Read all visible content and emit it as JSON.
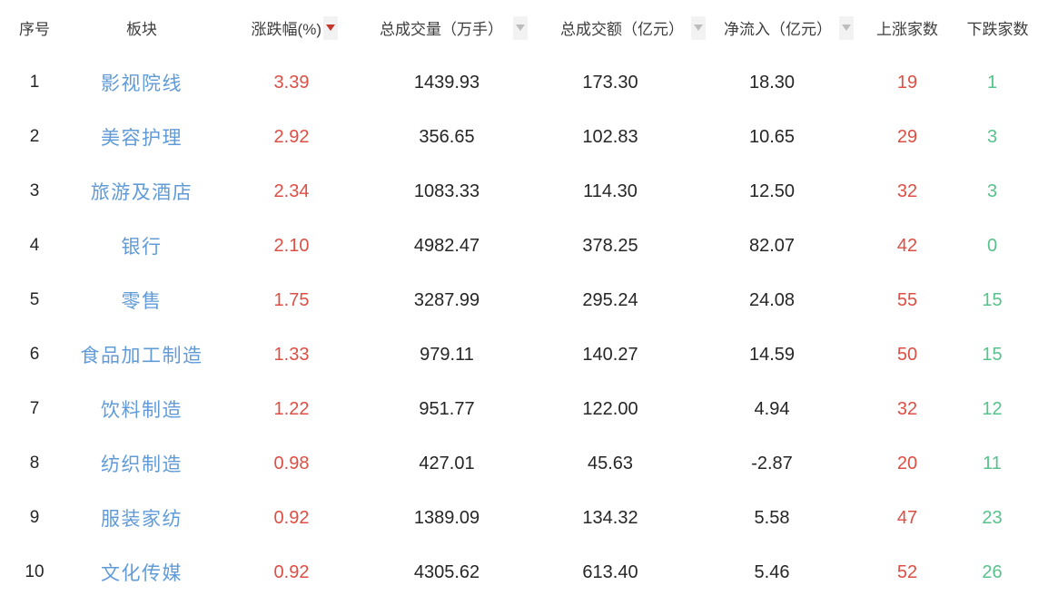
{
  "colors": {
    "rise_red": "#dd4f44",
    "fall_green": "#57c28b",
    "link_blue": "#609bd8",
    "sort_active_red": "#c5362c",
    "sort_inactive_gray": "#bdbdbd",
    "sort_button_bg": "#f2f2f2",
    "header_text": "#3d3d3d",
    "value_text": "#262626"
  },
  "table": {
    "columns": [
      {
        "key": "index",
        "label": "序号",
        "sort": "none"
      },
      {
        "key": "sector",
        "label": "板块",
        "sort": "none"
      },
      {
        "key": "change",
        "label": "涨跌幅(%)",
        "sort": "active-desc"
      },
      {
        "key": "volume",
        "label": "总成交量（万手）",
        "sort": "inactive"
      },
      {
        "key": "turnover",
        "label": "总成交额（亿元）",
        "sort": "inactive"
      },
      {
        "key": "inflow",
        "label": "净流入（亿元）",
        "sort": "inactive"
      },
      {
        "key": "up",
        "label": "上涨家数",
        "sort": "none"
      },
      {
        "key": "down",
        "label": "下跌家数",
        "sort": "none"
      }
    ],
    "rows": [
      {
        "index": "1",
        "sector": "影视院线",
        "change": "3.39",
        "volume": "1439.93",
        "turnover": "173.30",
        "inflow": "18.30",
        "up": "19",
        "down": "1"
      },
      {
        "index": "2",
        "sector": "美容护理",
        "change": "2.92",
        "volume": "356.65",
        "turnover": "102.83",
        "inflow": "10.65",
        "up": "29",
        "down": "3"
      },
      {
        "index": "3",
        "sector": "旅游及酒店",
        "change": "2.34",
        "volume": "1083.33",
        "turnover": "114.30",
        "inflow": "12.50",
        "up": "32",
        "down": "3"
      },
      {
        "index": "4",
        "sector": "银行",
        "change": "2.10",
        "volume": "4982.47",
        "turnover": "378.25",
        "inflow": "82.07",
        "up": "42",
        "down": "0"
      },
      {
        "index": "5",
        "sector": "零售",
        "change": "1.75",
        "volume": "3287.99",
        "turnover": "295.24",
        "inflow": "24.08",
        "up": "55",
        "down": "15"
      },
      {
        "index": "6",
        "sector": "食品加工制造",
        "change": "1.33",
        "volume": "979.11",
        "turnover": "140.27",
        "inflow": "14.59",
        "up": "50",
        "down": "15"
      },
      {
        "index": "7",
        "sector": "饮料制造",
        "change": "1.22",
        "volume": "951.77",
        "turnover": "122.00",
        "inflow": "4.94",
        "up": "32",
        "down": "12"
      },
      {
        "index": "8",
        "sector": "纺织制造",
        "change": "0.98",
        "volume": "427.01",
        "turnover": "45.63",
        "inflow": "-2.87",
        "up": "20",
        "down": "11"
      },
      {
        "index": "9",
        "sector": "服装家纺",
        "change": "0.92",
        "volume": "1389.09",
        "turnover": "134.32",
        "inflow": "5.58",
        "up": "47",
        "down": "23"
      },
      {
        "index": "10",
        "sector": "文化传媒",
        "change": "0.92",
        "volume": "4305.62",
        "turnover": "613.40",
        "inflow": "5.46",
        "up": "52",
        "down": "26"
      }
    ]
  }
}
